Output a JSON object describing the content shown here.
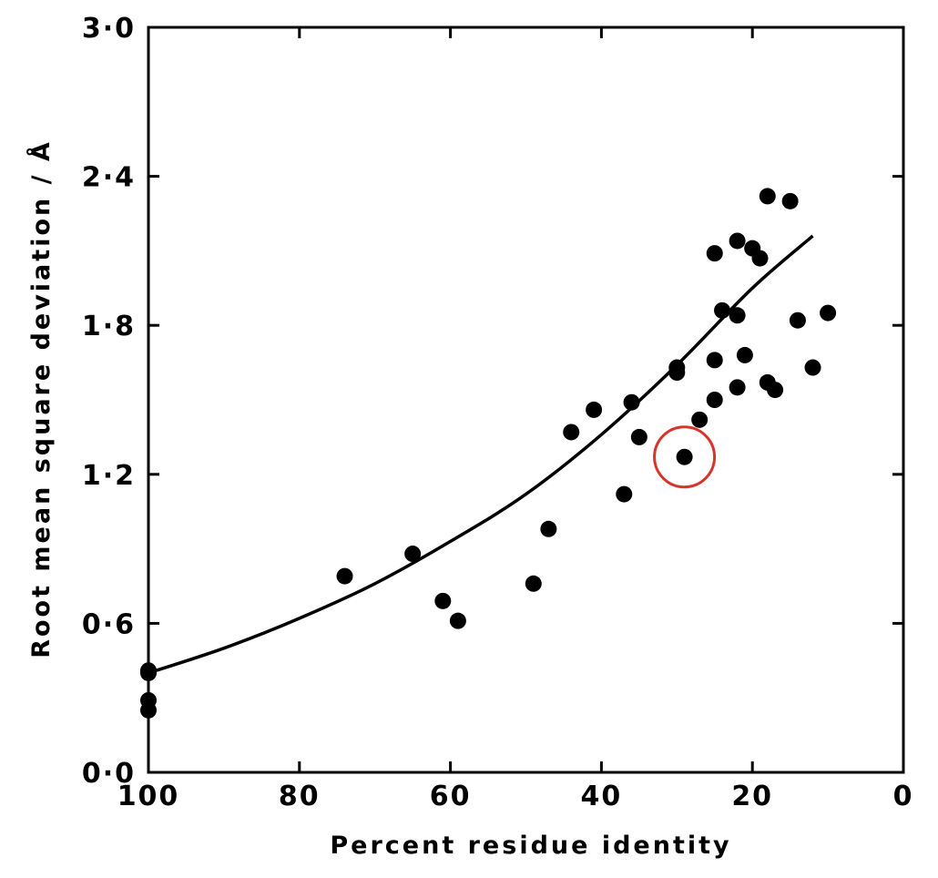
{
  "chart_data": {
    "type": "scatter",
    "title": "",
    "xlabel": "Percent residue identity",
    "ylabel": "Root mean square deviation / Å",
    "xlim": [
      100,
      0
    ],
    "ylim": [
      0.0,
      3.0
    ],
    "x_ticks": [
      100,
      80,
      60,
      40,
      20,
      0
    ],
    "x_tick_labels": [
      "100",
      "80",
      "60",
      "40",
      "20",
      "0"
    ],
    "y_ticks": [
      0.0,
      0.6,
      1.2,
      1.8,
      2.4,
      3.0
    ],
    "y_tick_labels": [
      "0·0",
      "0·6",
      "1·2",
      "1·8",
      "2·4",
      "3·0"
    ],
    "grid": false,
    "marker_color": "#000000",
    "highlight_color": "#d9342b",
    "series": [
      {
        "points": [
          [
            100,
            0.4
          ],
          [
            100,
            0.41
          ],
          [
            100,
            0.29
          ],
          [
            100,
            0.25
          ],
          [
            74,
            0.79
          ],
          [
            65,
            0.88
          ],
          [
            61,
            0.69
          ],
          [
            59,
            0.61
          ],
          [
            49,
            0.76
          ],
          [
            47,
            0.98
          ],
          [
            44,
            1.37
          ],
          [
            41,
            1.46
          ],
          [
            37,
            1.12
          ],
          [
            36,
            1.49
          ],
          [
            35,
            1.35
          ],
          [
            30,
            1.61
          ],
          [
            30,
            1.63
          ],
          [
            29,
            1.27
          ],
          [
            27,
            1.42
          ],
          [
            25,
            1.5
          ],
          [
            25,
            1.66
          ],
          [
            25,
            2.09
          ],
          [
            24,
            1.86
          ],
          [
            22,
            1.84
          ],
          [
            22,
            2.14
          ],
          [
            22,
            1.55
          ],
          [
            21,
            1.68
          ],
          [
            20,
            2.11
          ],
          [
            19,
            2.07
          ],
          [
            18,
            2.32
          ],
          [
            18,
            1.57
          ],
          [
            17,
            1.54
          ],
          [
            15,
            2.3
          ],
          [
            14,
            1.82
          ],
          [
            12,
            1.63
          ],
          [
            10,
            1.85
          ]
        ]
      }
    ],
    "fit_curve": [
      [
        100,
        0.4
      ],
      [
        90,
        0.5
      ],
      [
        80,
        0.62
      ],
      [
        70,
        0.76
      ],
      [
        60,
        0.93
      ],
      [
        50,
        1.12
      ],
      [
        40,
        1.36
      ],
      [
        30,
        1.64
      ],
      [
        20,
        1.95
      ],
      [
        12,
        2.16
      ]
    ],
    "highlighted_point": [
      29,
      1.27
    ]
  }
}
